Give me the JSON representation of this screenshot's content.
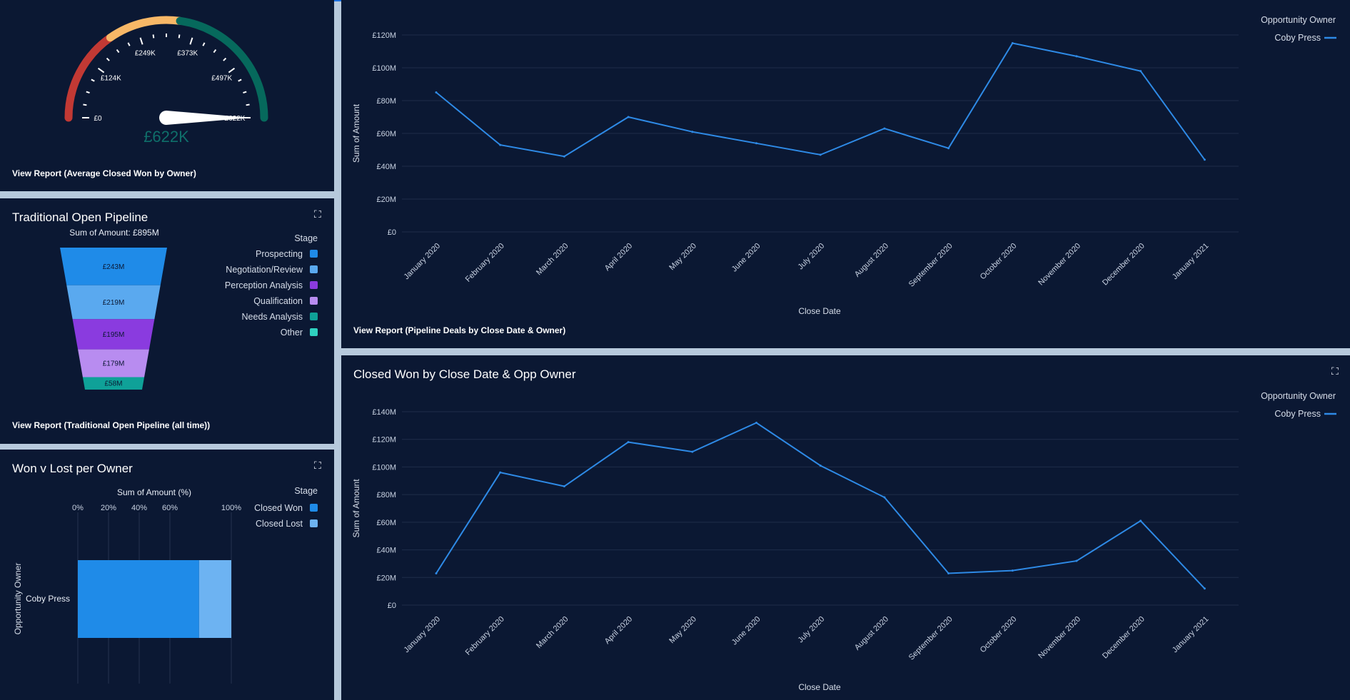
{
  "gauge": {
    "ticks": [
      "£0",
      "£124K",
      "£249K",
      "£373K",
      "£497K",
      "£622K"
    ],
    "value_label": "£622K",
    "value": 622,
    "max": 622,
    "report_link": "View Report (Average Closed Won by Owner)"
  },
  "funnel": {
    "title": "Traditional Open Pipeline",
    "subtitle": "Sum of Amount: £895M",
    "legend_title": "Stage",
    "report_link": "View Report (Traditional Open Pipeline (all time))",
    "chart_data": {
      "type": "bar",
      "title": "Sum of Amount: £895M",
      "categories": [
        "Prospecting",
        "Negotiation/Review",
        "Perception Analysis",
        "Qualification",
        "Needs Analysis",
        "Other"
      ],
      "labels": [
        "£243M",
        "£219M",
        "£195M",
        "£179M",
        "£58M",
        ""
      ],
      "values": [
        243,
        219,
        195,
        179,
        58,
        0
      ],
      "colors": [
        "#1f8be8",
        "#5aa9ef",
        "#8a3bdf",
        "#b88cf0",
        "#0fa198",
        "#2fd1c0"
      ]
    }
  },
  "wonlost": {
    "title": "Won v Lost per Owner",
    "legend_title": "Stage",
    "chart_data": {
      "type": "bar",
      "xlabel": "Sum of Amount (%)",
      "ylabel": "Opportunity Owner",
      "categories": [
        "Coby Press"
      ],
      "xticks": [
        "0%",
        "20%",
        "40%",
        "60%",
        "100%"
      ],
      "series": [
        {
          "name": "Closed Won",
          "values": [
            79
          ],
          "color": "#1f8be8"
        },
        {
          "name": "Closed Lost",
          "values": [
            21
          ],
          "color": "#6db3f2"
        }
      ]
    }
  },
  "pipeline": {
    "report_link": "View Report (Pipeline Deals by Close Date & Owner)",
    "legend_title": "Opportunity Owner",
    "chart_data": {
      "type": "line",
      "xlabel": "Close Date",
      "ylabel": "Sum of Amount",
      "yticks": [
        "£0",
        "£20M",
        "£40M",
        "£60M",
        "£80M",
        "£100M",
        "£120M"
      ],
      "ylim": [
        0,
        120
      ],
      "categories": [
        "January 2020",
        "February 2020",
        "March 2020",
        "April 2020",
        "May 2020",
        "June 2020",
        "July 2020",
        "August 2020",
        "September 2020",
        "October 2020",
        "November 2020",
        "December 2020",
        "January 2021"
      ],
      "series": [
        {
          "name": "Coby Press",
          "color": "#2e8ae6",
          "values": [
            85,
            53,
            46,
            70,
            61,
            54,
            47,
            63,
            51,
            115,
            107,
            98,
            44
          ]
        }
      ]
    }
  },
  "closedwon": {
    "title": "Closed Won by Close Date & Opp Owner",
    "legend_title": "Opportunity Owner",
    "chart_data": {
      "type": "line",
      "xlabel": "Close Date",
      "ylabel": "Sum of Amount",
      "yticks": [
        "£0",
        "£20M",
        "£40M",
        "£60M",
        "£80M",
        "£100M",
        "£120M",
        "£140M"
      ],
      "ylim": [
        0,
        140
      ],
      "categories": [
        "January 2020",
        "February 2020",
        "March 2020",
        "April 2020",
        "May 2020",
        "June 2020",
        "July 2020",
        "August 2020",
        "September 2020",
        "October 2020",
        "November 2020",
        "December 2020",
        "January 2021"
      ],
      "series": [
        {
          "name": "Coby Press",
          "color": "#2e8ae6",
          "values": [
            23,
            96,
            86,
            118,
            111,
            132,
            101,
            78,
            23,
            25,
            32,
            61,
            12
          ]
        }
      ]
    }
  },
  "icons": {
    "expand": "expand-icon"
  }
}
